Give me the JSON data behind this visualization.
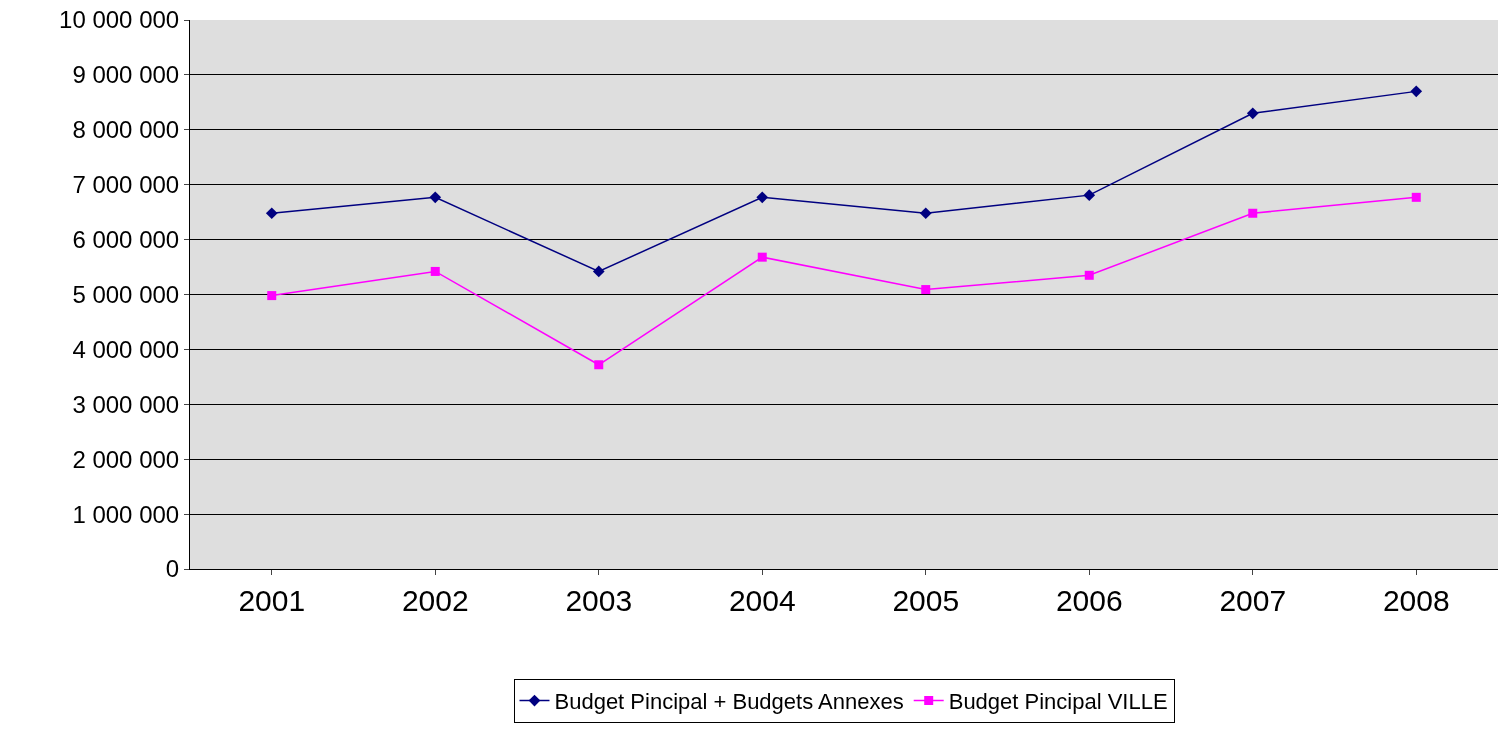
{
  "chart_data": {
    "type": "line",
    "categories": [
      "2001",
      "2002",
      "2003",
      "2004",
      "2005",
      "2006",
      "2007",
      "2008"
    ],
    "series": [
      {
        "name": "Budget Pincipal + Budgets Annexes",
        "color": "#000080",
        "marker": "diamond",
        "values": [
          6480000,
          6770000,
          5420000,
          6770000,
          6480000,
          6810000,
          8300000,
          8700000
        ]
      },
      {
        "name": "Budget Pincipal VILLE",
        "color": "#ff00ff",
        "marker": "square",
        "values": [
          4980000,
          5420000,
          3720000,
          5680000,
          5090000,
          5350000,
          6480000,
          6770000
        ]
      }
    ],
    "ylim": [
      0,
      10000000
    ],
    "yticks": [
      0,
      {
        "value": 1000000,
        "label": "1 000 000"
      },
      {
        "value": 2000000,
        "label": "2 000 000"
      },
      {
        "value": 3000000,
        "label": "3 000 000"
      },
      {
        "value": 4000000,
        "label": "4 000 000"
      },
      {
        "value": 5000000,
        "label": "5 000 000"
      },
      {
        "value": 6000000,
        "label": "6 000 000"
      },
      {
        "value": 7000000,
        "label": "7 000 000"
      },
      {
        "value": 8000000,
        "label": "8 000 000"
      },
      {
        "value": 9000000,
        "label": "9 000 000"
      },
      {
        "value": 10000000,
        "label": "10 000 000"
      }
    ],
    "grid": "y",
    "legend": "bottom"
  }
}
